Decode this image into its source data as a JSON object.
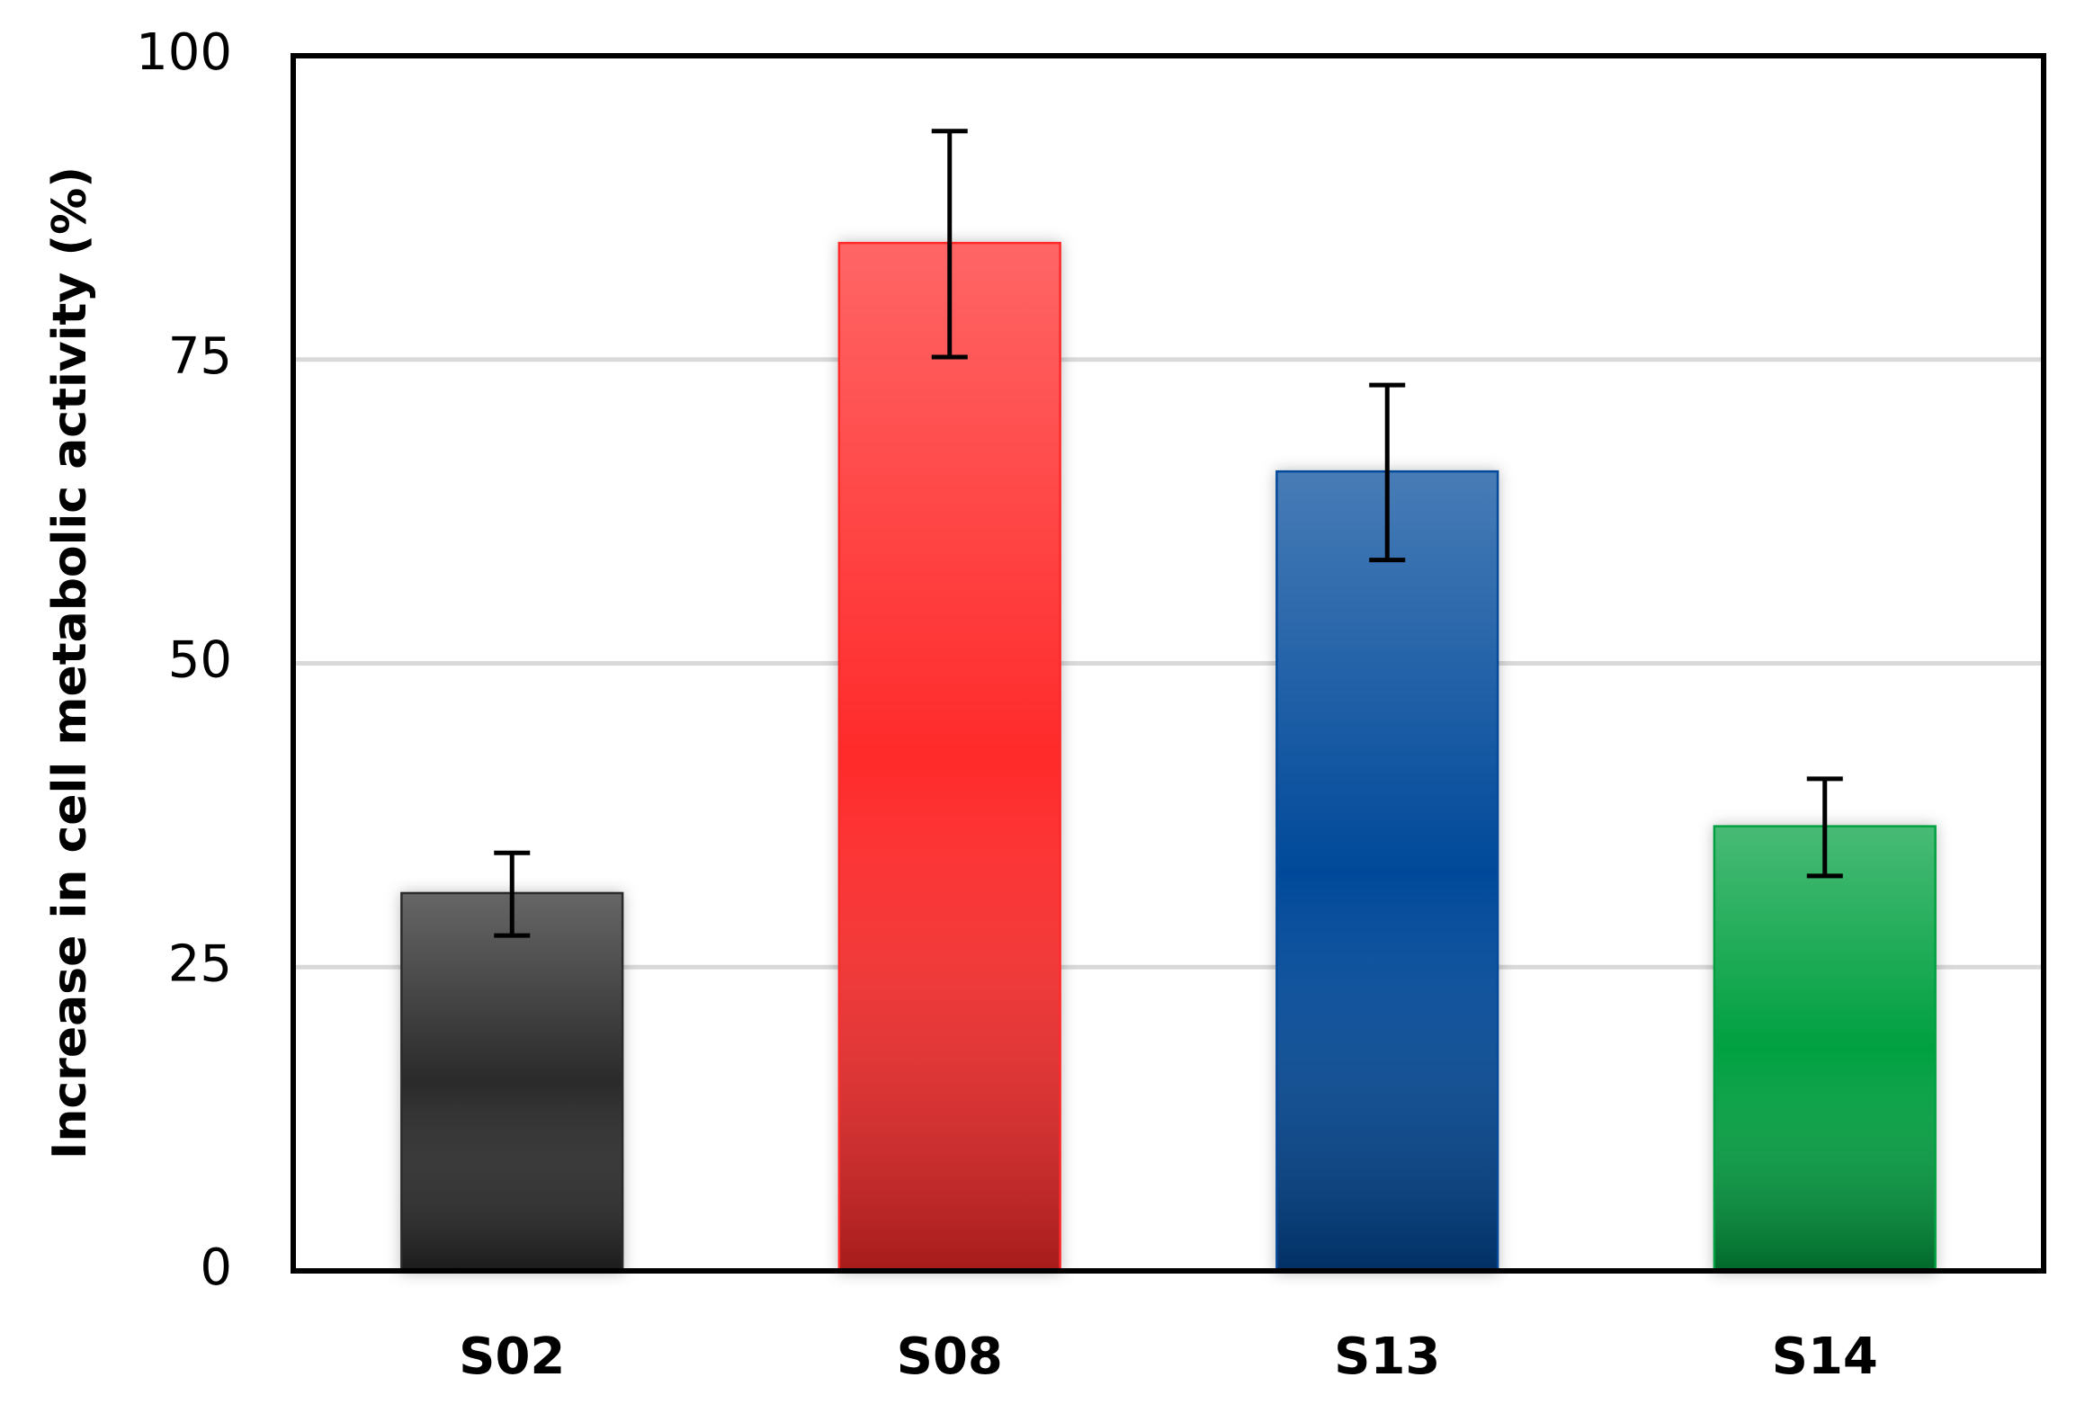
{
  "chart_data": {
    "type": "bar",
    "ylabel": "Increase in cell metabolic activity (%)",
    "categories": [
      "S02",
      "S08",
      "S13",
      "S14"
    ],
    "values": [
      31,
      84.5,
      65.7,
      36.5
    ],
    "errors": [
      3.4,
      9.3,
      7.2,
      4
    ],
    "colors": [
      "#2a2a2a",
      "#ff2a2a",
      "#004a9a",
      "#00a040"
    ],
    "ylim": [
      0,
      100
    ],
    "yticks": [
      0,
      25,
      50,
      75,
      100
    ],
    "grid": true
  }
}
